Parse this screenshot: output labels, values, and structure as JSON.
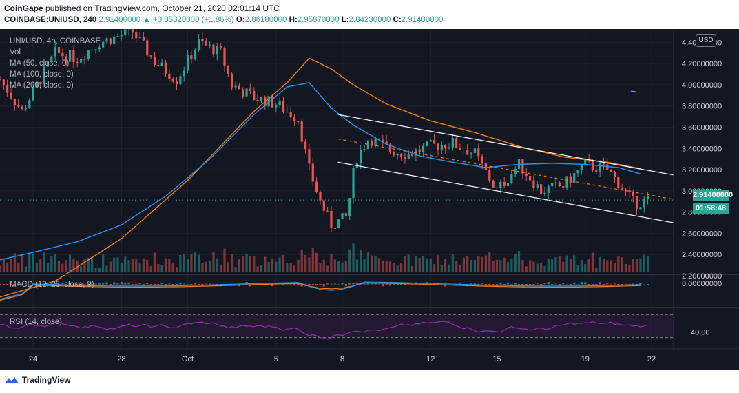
{
  "header": {
    "publisher": "CoinGape",
    "published_text": "published on TradingView.com, October 21, 2020 02:01:14 UTC",
    "symbol": "COINBASE:UNIUSD, 240",
    "last": "2.91400000",
    "change": "+0.05320000 (+1.86%)",
    "o_label": "O:",
    "o_value": "2.86180000",
    "h_label": "H:",
    "h_value": "2.95870000",
    "l_label": "L:",
    "l_value": "2.84230000",
    "c_label": "C:",
    "c_value": "2.91400000"
  },
  "legend": {
    "title": "UNI/USD, 4h, COINBASE",
    "vol": "Vol",
    "ma50": "MA (50, close, 0)",
    "ma100": "MA (100, close, 0)",
    "ma200": "MA (200, close, 0)",
    "macd": "MACD (12, 26, close, 9)",
    "rsi": "RSI (14, close)"
  },
  "price_tag": "2.91400000",
  "countdown": "01:58:48",
  "currency": "USD",
  "footer_brand": "TradingView",
  "colors": {
    "bg": "#131722",
    "up": "#26a69a",
    "down": "#ef5350",
    "ma50": "#2196f3",
    "ma100": "#f57c00",
    "rsi": "#9c27b0"
  },
  "chart_data": {
    "type": "candlestick",
    "title": "UNI/USD, 4h, COINBASE",
    "ylim": [
      2.2,
      4.5
    ],
    "y_ticks": [
      "4.40000000",
      "4.20000000",
      "4.00000000",
      "3.80000000",
      "3.60000000",
      "3.40000000",
      "3.20000000",
      "3.00000000",
      "2.80000000",
      "2.60000000",
      "2.40000000",
      "2.20000000"
    ],
    "y_tick_values": [
      4.4,
      4.2,
      4.0,
      3.8,
      3.6,
      3.4,
      3.2,
      3.0,
      2.8,
      2.6,
      2.4,
      2.2
    ],
    "x_ticks": [
      "24",
      "28",
      "Oct",
      "5",
      "8",
      "12",
      "15",
      "19",
      "22"
    ],
    "x_tick_days": [
      24,
      28,
      31,
      35,
      38,
      42,
      45,
      49,
      52
    ],
    "x_range_days": [
      22.5,
      53.0
    ],
    "channel": {
      "upper": [
        [
          37.8,
          3.72
        ],
        [
          53.0,
          3.15
        ]
      ],
      "middle": [
        [
          37.8,
          3.49
        ],
        [
          53.0,
          2.92
        ]
      ],
      "lower": [
        [
          37.8,
          3.27
        ],
        [
          53.0,
          2.7
        ]
      ]
    },
    "ma50": [
      [
        22.5,
        2.35
      ],
      [
        24,
        2.42
      ],
      [
        26,
        2.52
      ],
      [
        28,
        2.68
      ],
      [
        30,
        2.95
      ],
      [
        32,
        3.3
      ],
      [
        34,
        3.72
      ],
      [
        35.5,
        3.98
      ],
      [
        36.5,
        4.02
      ],
      [
        37.5,
        3.78
      ],
      [
        38.5,
        3.62
      ],
      [
        40,
        3.44
      ],
      [
        41.5,
        3.33
      ],
      [
        43,
        3.27
      ],
      [
        44.5,
        3.22
      ],
      [
        46,
        3.25
      ],
      [
        47.5,
        3.26
      ],
      [
        49,
        3.25
      ],
      [
        50.5,
        3.22
      ],
      [
        51.5,
        3.16
      ]
    ],
    "ma100": [
      [
        22.5,
        2.0
      ],
      [
        25,
        2.15
      ],
      [
        28,
        2.55
      ],
      [
        31,
        3.1
      ],
      [
        34,
        3.75
      ],
      [
        35.5,
        4.02
      ],
      [
        36.5,
        4.25
      ],
      [
        37.5,
        4.15
      ],
      [
        38.5,
        4.0
      ],
      [
        40,
        3.82
      ],
      [
        42,
        3.66
      ],
      [
        44,
        3.55
      ],
      [
        46,
        3.42
      ],
      [
        48,
        3.32
      ],
      [
        50,
        3.27
      ],
      [
        51.5,
        3.21
      ]
    ],
    "ma200_point": [
      51.2,
      3.94
    ],
    "rsi_levels": [
      70,
      30
    ],
    "macd_zero": "0.00000000",
    "rsi_tick": "40.00"
  }
}
